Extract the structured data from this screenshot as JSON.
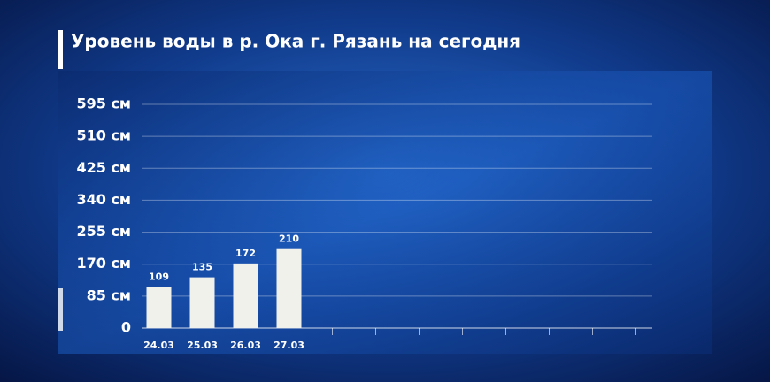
{
  "chart_data": {
    "type": "bar",
    "title": "Уровень воды в р. Ока г. Рязань на сегодня",
    "categories": [
      "24.03",
      "25.03",
      "26.03",
      "27.03",
      null,
      null,
      null,
      null,
      null,
      null,
      null,
      null
    ],
    "values": [
      109,
      135,
      172,
      210,
      null,
      null,
      null,
      null,
      null,
      null,
      null,
      null
    ],
    "color": "#f1f1ec",
    "ylim": [
      0,
      595
    ],
    "yticks": [
      0,
      {
        "value": 85,
        "label": "85 см"
      },
      {
        "value": 170,
        "label": "170 см"
      },
      {
        "value": 255,
        "label": "255 см"
      },
      {
        "value": 340,
        "label": "340 см"
      },
      {
        "value": 425,
        "label": "425 см"
      },
      {
        "value": 510,
        "label": "510 см"
      },
      {
        "value": 595,
        "label": "595 см"
      }
    ],
    "grid": true
  }
}
